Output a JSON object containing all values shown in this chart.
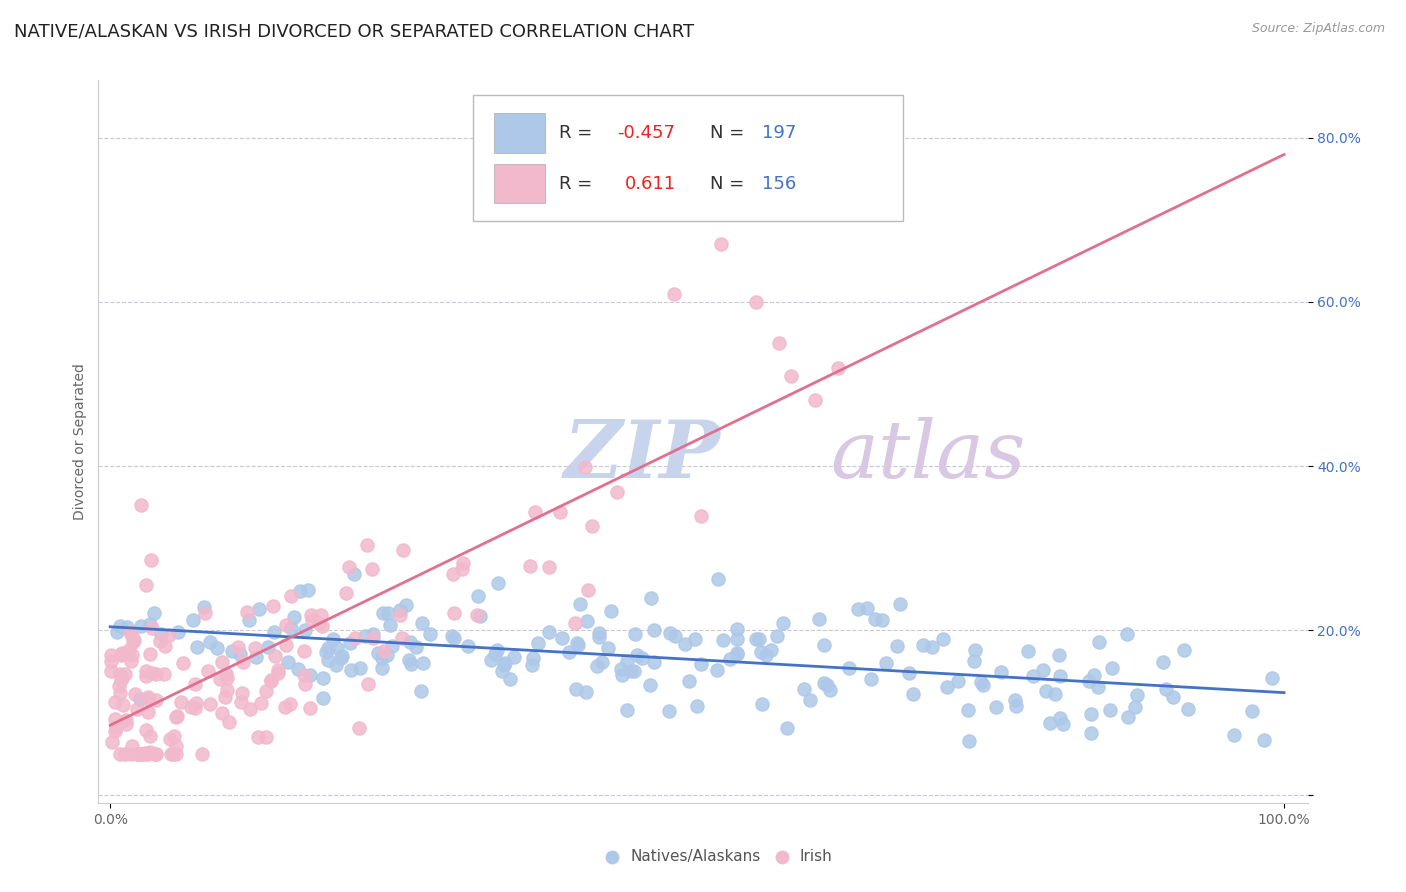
{
  "title": "NATIVE/ALASKAN VS IRISH DIVORCED OR SEPARATED CORRELATION CHART",
  "source_text": "Source: ZipAtlas.com",
  "ylabel": "Divorced or Separated",
  "x_label_blue": "Natives/Alaskans",
  "x_label_pink": "Irish",
  "x_tick_labels": [
    "0.0%",
    "100.0%"
  ],
  "y_tick_labels": [
    "",
    "20.0%",
    "40.0%",
    "60.0%",
    "80.0%"
  ],
  "blue_R": -0.457,
  "blue_N": 197,
  "pink_R": 0.611,
  "pink_N": 156,
  "blue_color": "#adc8e8",
  "pink_color": "#f2b8cc",
  "blue_line_color": "#4472c4",
  "pink_line_color": "#e07090",
  "legend_R_color": "#ee2222",
  "legend_N_color": "#4472c4",
  "legend_text_color": "#333333",
  "background_color": "#ffffff",
  "grid_color": "#c8c8d8",
  "watermark_ZIP_color": "#c8d4ec",
  "watermark_atlas_color": "#d8c8e4",
  "title_fontsize": 13,
  "axis_label_fontsize": 10,
  "tick_fontsize": 10,
  "legend_fontsize": 13
}
